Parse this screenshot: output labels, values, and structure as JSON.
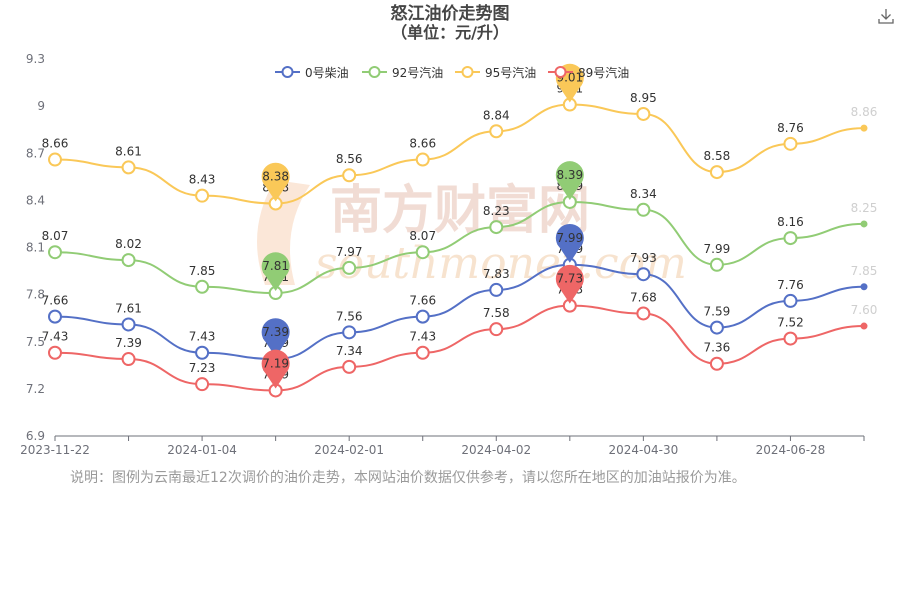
{
  "title": "怒江油价走势图",
  "subtitle": "（单位：元/升）",
  "download_icon": "download-icon",
  "note": "说明：图例为云南最近12次调价的油价走势，本网站油价数据仅供参考，请以您所在地区的加油站报价为准。",
  "watermark": {
    "text_cn": "南方财富网",
    "text_en": "southmoney.com"
  },
  "chart_data": {
    "type": "line",
    "title": "怒江油价走势图",
    "subtitle": "（单位：元/升）",
    "categories": [
      "2023-11-22",
      "",
      "2024-01-04",
      "",
      "2024-02-01",
      "",
      "2024-04-02",
      "",
      "2024-04-30",
      "",
      "2024-06-28",
      ""
    ],
    "x_tick_labels": [
      "2023-11-22",
      "2024-01-04",
      "2024-02-01",
      "2024-04-02",
      "2024-04-30",
      "2024-06-28"
    ],
    "ylim": [
      6.9,
      9.3
    ],
    "y_ticks": [
      6.9,
      7.2,
      7.5,
      7.8,
      8.1,
      8.4,
      8.7,
      9,
      9.3
    ],
    "y_tick_labels": [
      "6.9",
      "7.2",
      "7.5",
      "7.8",
      "8.1",
      "8.4",
      "8.7",
      "9",
      "9.3"
    ],
    "grid": false,
    "smooth": true,
    "legend_position": "top",
    "series": [
      {
        "name": "0号柴油",
        "color": "#5470c6",
        "values": [
          7.66,
          7.61,
          7.43,
          7.39,
          7.56,
          7.66,
          7.83,
          7.99,
          7.93,
          7.59,
          7.76,
          7.85
        ],
        "max_label": "7.99",
        "min_label": "7.39"
      },
      {
        "name": "92号汽油",
        "color": "#91cc75",
        "values": [
          8.07,
          8.02,
          7.85,
          7.81,
          7.97,
          8.07,
          8.23,
          8.39,
          8.34,
          7.99,
          8.16,
          8.25
        ],
        "max_label": "8.39",
        "min_label": "7.81"
      },
      {
        "name": "95号汽油",
        "color": "#fac858",
        "values": [
          8.66,
          8.61,
          8.43,
          8.38,
          8.56,
          8.66,
          8.84,
          9.01,
          8.95,
          8.58,
          8.76,
          8.86
        ],
        "max_label": "9.01",
        "min_label": "8.38"
      },
      {
        "name": "89号汽油",
        "color": "#ee6666",
        "values": [
          7.43,
          7.39,
          7.23,
          7.19,
          7.34,
          7.43,
          7.58,
          7.73,
          7.68,
          7.36,
          7.52,
          7.6
        ],
        "max_label": "7.73",
        "min_label": "7.19"
      }
    ],
    "marker_points": [
      {
        "series": 2,
        "type": "max",
        "index": 7
      },
      {
        "series": 2,
        "type": "min",
        "index": 3
      },
      {
        "series": 1,
        "type": "max",
        "index": 7
      },
      {
        "series": 1,
        "type": "min",
        "index": 3
      },
      {
        "series": 0,
        "type": "max",
        "index": 7
      },
      {
        "series": 0,
        "type": "min",
        "index": 3
      },
      {
        "series": 3,
        "type": "max",
        "index": 7
      },
      {
        "series": 3,
        "type": "min",
        "index": 3
      }
    ]
  }
}
